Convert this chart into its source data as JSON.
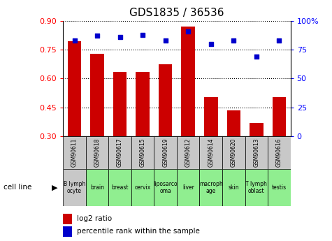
{
  "title": "GDS1835 / 36536",
  "gsm_ids": [
    "GSM90611",
    "GSM90618",
    "GSM90617",
    "GSM90615",
    "GSM90619",
    "GSM90612",
    "GSM90614",
    "GSM90620",
    "GSM90613",
    "GSM90616"
  ],
  "cell_lines": [
    "B lymph\nocyte",
    "brain",
    "breast",
    "cervix",
    "liposarco\noma",
    "liver",
    "macroph\nage",
    "skin",
    "T lymph\noblast",
    "testis"
  ],
  "cell_line_colors": [
    "#c8c8c8",
    "#90ee90",
    "#90ee90",
    "#90ee90",
    "#90ee90",
    "#90ee90",
    "#90ee90",
    "#90ee90",
    "#90ee90",
    "#90ee90"
  ],
  "gsm_bg_color": "#c8c8c8",
  "log2_ratio": [
    0.795,
    0.73,
    0.635,
    0.635,
    0.675,
    0.87,
    0.505,
    0.435,
    0.37,
    0.505
  ],
  "percentile_rank": [
    83,
    87,
    86,
    88,
    83,
    91,
    80,
    83,
    69,
    83
  ],
  "ylim_left": [
    0.3,
    0.9
  ],
  "ylim_right": [
    0,
    100
  ],
  "yticks_left": [
    0.3,
    0.45,
    0.6,
    0.75,
    0.9
  ],
  "yticks_right": [
    0,
    25,
    50,
    75,
    100
  ],
  "bar_color": "#cc0000",
  "dot_color": "#0000cc",
  "bar_bottom": 0.3,
  "legend_bar_label": "log2 ratio",
  "legend_dot_label": "percentile rank within the sample",
  "cell_line_label": "cell line",
  "title_fontsize": 11
}
